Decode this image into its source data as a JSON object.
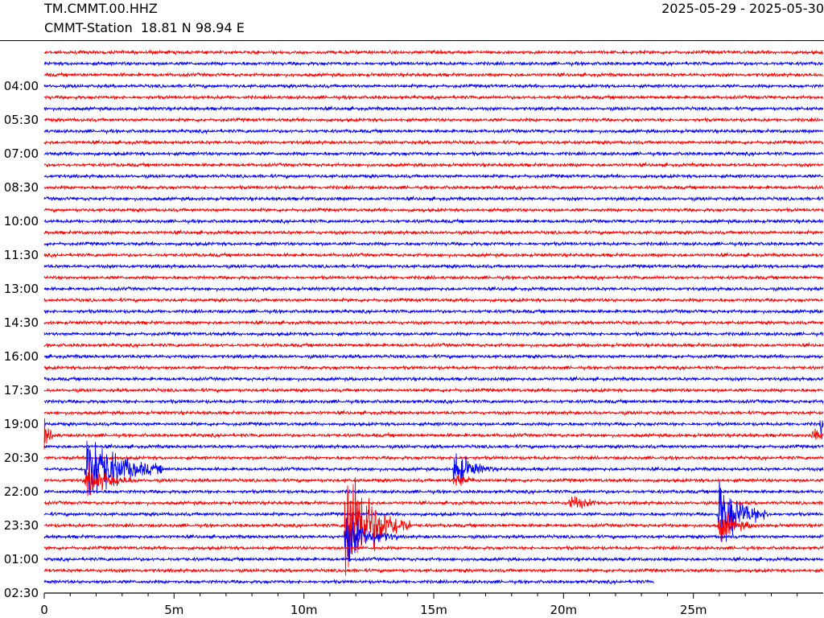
{
  "header": {
    "station_code": "TM.CMMT.00.HHZ",
    "station_info": "CMMT-Station  18.81 N 98.94 E",
    "date_range": "2025-05-29 - 2025-05-30"
  },
  "colors": {
    "trace_a": "#ff0000",
    "trace_b": "#0000ff",
    "axis": "#000000",
    "background": "#ffffff"
  },
  "chart_data": {
    "type": "line",
    "title": "",
    "subtitle": "",
    "xlabel": "",
    "ylabel": "",
    "x_unit": "minutes",
    "xlim": [
      0,
      30
    ],
    "x_ticks": [
      {
        "value": 0,
        "label": "0"
      },
      {
        "value": 5,
        "label": "5m"
      },
      {
        "value": 10,
        "label": "10m"
      },
      {
        "value": 15,
        "label": "15m"
      },
      {
        "value": 20,
        "label": "20m"
      },
      {
        "value": 25,
        "label": "25m"
      }
    ],
    "x_minor_tick_step": 1,
    "row_count": 48,
    "last_row_end_minute": 23.5,
    "row_colors": [
      "#ff0000",
      "#0000ff"
    ],
    "y_ticks": [
      "04:00",
      "05:30",
      "07:00",
      "08:30",
      "10:00",
      "11:30",
      "13:00",
      "14:30",
      "16:00",
      "17:30",
      "19:00",
      "20:30",
      "22:00",
      "23:30",
      "01:00",
      "02:30"
    ],
    "y_tick_first_row": 3,
    "y_tick_row_step": 3,
    "grid": false,
    "events": [
      {
        "row": 34,
        "minute": 0.0,
        "amplitude": 2.0,
        "duration": 0.6
      },
      {
        "row": 33,
        "minute": 29.9,
        "amplitude": 2.0,
        "duration": 0.5
      },
      {
        "row": 34,
        "minute": 29.6,
        "amplitude": 1.2,
        "duration": 0.8
      },
      {
        "row": 37,
        "minute": 1.6,
        "amplitude": 8.0,
        "duration": 3.0
      },
      {
        "row": 38,
        "minute": 1.6,
        "amplitude": 3.0,
        "duration": 2.0
      },
      {
        "row": 42,
        "minute": 11.6,
        "amplitude": 14.0,
        "duration": 2.5
      },
      {
        "row": 43,
        "minute": 11.6,
        "amplitude": 5.0,
        "duration": 2.0
      },
      {
        "row": 37,
        "minute": 15.8,
        "amplitude": 4.0,
        "duration": 1.5
      },
      {
        "row": 38,
        "minute": 15.8,
        "amplitude": 1.5,
        "duration": 1.0
      },
      {
        "row": 40,
        "minute": 20.2,
        "amplitude": 1.5,
        "duration": 1.6
      },
      {
        "row": 41,
        "minute": 26.0,
        "amplitude": 7.0,
        "duration": 2.0
      },
      {
        "row": 42,
        "minute": 26.0,
        "amplitude": 3.0,
        "duration": 1.5
      }
    ]
  }
}
